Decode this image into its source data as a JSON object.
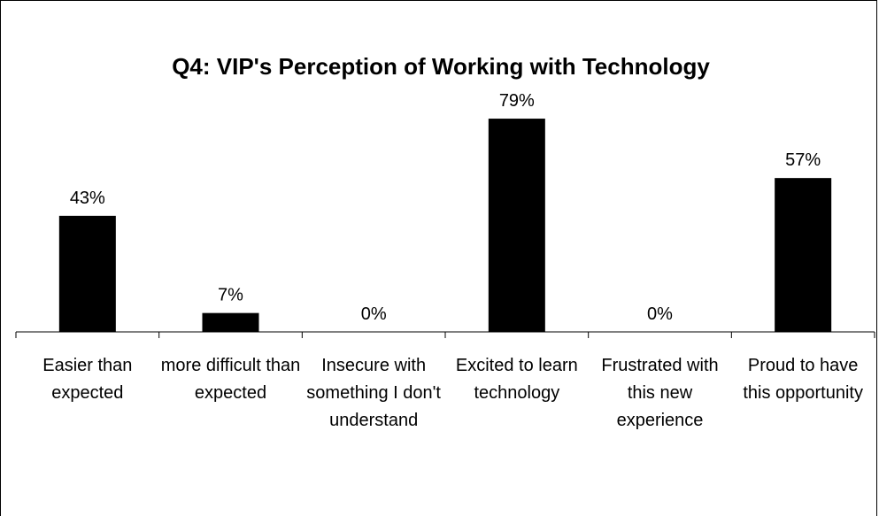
{
  "chart_data": {
    "type": "bar",
    "title": "Q4: VIP's Perception of Working with Technology",
    "categories": [
      "Easier than expected",
      "more difficult than expected",
      "Insecure with something I don't understand",
      "Excited to learn technology",
      "Frustrated with this new experience",
      "Proud to have this opportunity"
    ],
    "values": [
      43,
      7,
      0,
      79,
      0,
      57
    ],
    "value_labels": [
      "43%",
      "7%",
      "0%",
      "79%",
      "0%",
      "57%"
    ],
    "color": "#000000"
  }
}
